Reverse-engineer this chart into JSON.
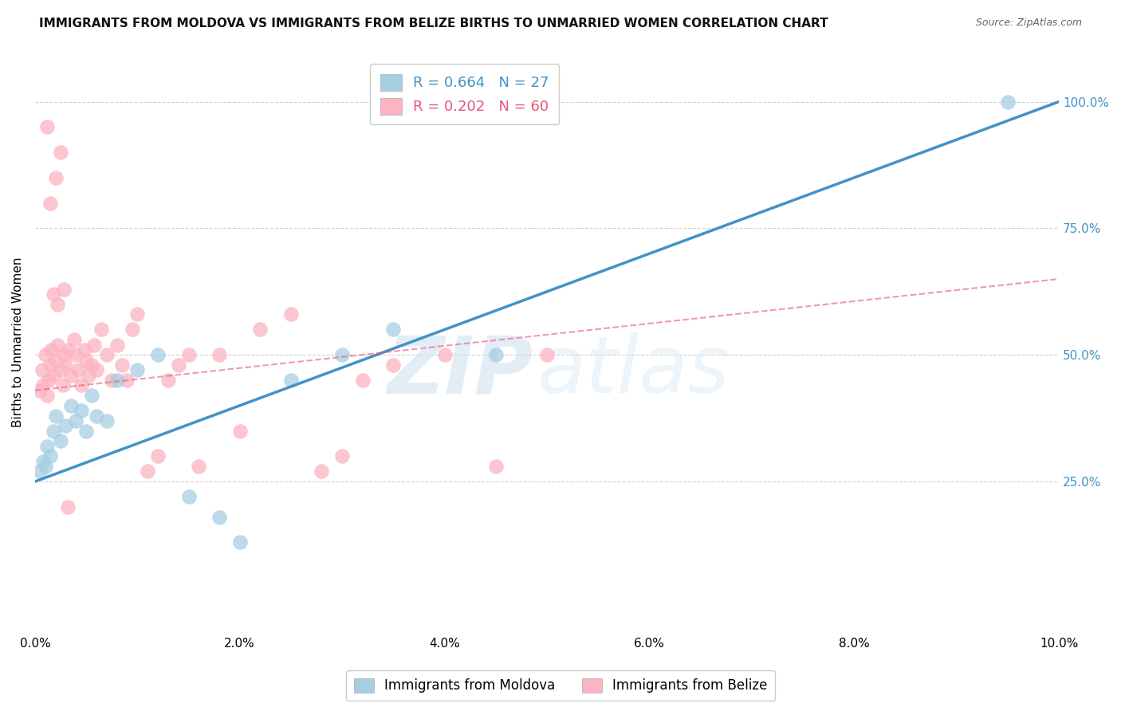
{
  "title": "IMMIGRANTS FROM MOLDOVA VS IMMIGRANTS FROM BELIZE BIRTHS TO UNMARRIED WOMEN CORRELATION CHART",
  "source": "Source: ZipAtlas.com",
  "ylabel": "Births to Unmarried Women",
  "xlabel_ticks": [
    "0.0%",
    "2.0%",
    "4.0%",
    "6.0%",
    "8.0%",
    "10.0%"
  ],
  "xlabel_vals": [
    0.0,
    2.0,
    4.0,
    6.0,
    8.0,
    10.0
  ],
  "ylabel_ticks": [
    "25.0%",
    "50.0%",
    "75.0%",
    "100.0%"
  ],
  "ylabel_vals": [
    25.0,
    50.0,
    75.0,
    100.0
  ],
  "xlim": [
    0.0,
    10.0
  ],
  "ylim": [
    -5.0,
    110.0
  ],
  "moldova_scatter_x": [
    0.05,
    0.08,
    0.1,
    0.12,
    0.15,
    0.18,
    0.2,
    0.25,
    0.3,
    0.35,
    0.4,
    0.45,
    0.5,
    0.55,
    0.6,
    0.7,
    0.8,
    1.0,
    1.2,
    1.5,
    1.8,
    2.0,
    2.5,
    3.0,
    3.5,
    4.5,
    9.5
  ],
  "moldova_scatter_y": [
    27,
    29,
    28,
    32,
    30,
    35,
    38,
    33,
    36,
    40,
    37,
    39,
    35,
    42,
    38,
    37,
    45,
    47,
    50,
    22,
    18,
    13,
    45,
    50,
    55,
    50,
    100
  ],
  "belize_scatter_x": [
    0.05,
    0.07,
    0.08,
    0.1,
    0.12,
    0.13,
    0.15,
    0.16,
    0.18,
    0.2,
    0.22,
    0.25,
    0.27,
    0.28,
    0.3,
    0.32,
    0.35,
    0.38,
    0.4,
    0.42,
    0.45,
    0.48,
    0.5,
    0.52,
    0.55,
    0.58,
    0.6,
    0.65,
    0.7,
    0.75,
    0.8,
    0.85,
    0.9,
    0.95,
    1.0,
    1.1,
    1.2,
    1.3,
    1.4,
    1.5,
    1.6,
    1.8,
    2.0,
    2.2,
    2.5,
    2.8,
    3.0,
    3.2,
    3.5,
    4.0,
    4.5,
    5.0,
    0.15,
    0.2,
    0.25,
    0.12,
    0.18,
    0.22,
    0.28,
    0.32
  ],
  "belize_scatter_y": [
    43,
    47,
    44,
    50,
    42,
    45,
    48,
    51,
    46,
    49,
    52,
    47,
    44,
    50,
    48,
    51,
    46,
    53,
    50,
    47,
    44,
    51,
    49,
    46,
    48,
    52,
    47,
    55,
    50,
    45,
    52,
    48,
    45,
    55,
    58,
    27,
    30,
    45,
    48,
    50,
    28,
    50,
    35,
    55,
    58,
    27,
    30,
    45,
    48,
    50,
    28,
    50,
    80,
    85,
    90,
    95,
    62,
    60,
    63,
    20
  ],
  "moldova_line_x": [
    0.0,
    10.0
  ],
  "moldova_line_y": [
    25.0,
    100.0
  ],
  "belize_line_x": [
    0.0,
    10.0
  ],
  "belize_line_y": [
    43.0,
    65.0
  ],
  "moldova_color": "#4292c6",
  "belize_color": "#e8567a",
  "moldova_scatter_color": "#a6cee3",
  "belize_scatter_color": "#fbb4c1",
  "grid_color": "#d0d0d0",
  "background_color": "#ffffff",
  "watermark_zip": "ZIP",
  "watermark_atlas": "atlas",
  "title_fontsize": 11,
  "axis_label_fontsize": 11,
  "tick_fontsize": 11,
  "right_tick_color": "#4292c6",
  "legend_label_moldova": "R = 0.664   N = 27",
  "legend_label_belize": "R = 0.202   N = 60",
  "bottom_legend_moldova": "Immigrants from Moldova",
  "bottom_legend_belize": "Immigrants from Belize"
}
